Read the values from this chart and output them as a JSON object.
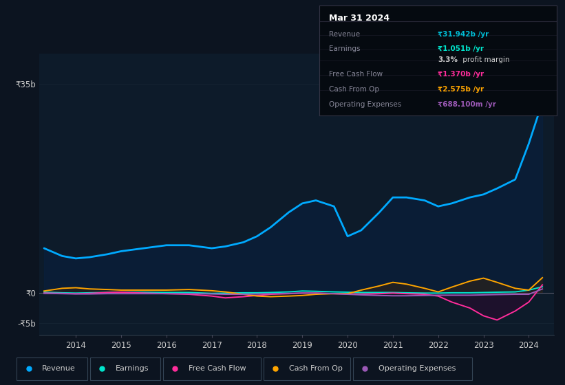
{
  "bg_color": "#0c1420",
  "chart_bg": "#0d1b2a",
  "legend_bg": "#0c1420",
  "box_bg": "#050a10",
  "box_border": "#333344",
  "colors": {
    "revenue": "#00aaff",
    "earnings": "#00e5cc",
    "free_cash_flow": "#ff2d9b",
    "cash_from_op": "#ffa500",
    "op_expenses": "#9b59b6",
    "zero_line": "#555566",
    "grid": "#1a2a3a"
  },
  "legend": [
    {
      "label": "Revenue",
      "color": "#00aaff"
    },
    {
      "label": "Earnings",
      "color": "#00e5cc"
    },
    {
      "label": "Free Cash Flow",
      "color": "#ff2d9b"
    },
    {
      "label": "Cash From Op",
      "color": "#ffa500"
    },
    {
      "label": "Operating Expenses",
      "color": "#9b59b6"
    }
  ],
  "ytick_labels": [
    "₹35b",
    "₹0",
    "-₹5b"
  ],
  "ytick_vals": [
    35,
    0,
    -5
  ],
  "xtick_vals": [
    2014,
    2015,
    2016,
    2017,
    2018,
    2019,
    2020,
    2021,
    2022,
    2023,
    2024
  ],
  "ylim": [
    -7,
    40
  ],
  "xlim_left": 2013.2,
  "xlim_right": 2024.55,
  "box_date": "Mar 31 2024",
  "box_rows": [
    {
      "label": "Revenue",
      "value": "₹31.942b /yr",
      "vcolor": "#00bcd4"
    },
    {
      "label": "Earnings",
      "value": "₹1.051b /yr",
      "vcolor": "#00e5cc"
    },
    {
      "label": "",
      "value": "3.3% profit margin",
      "vcolor": "#cccccc",
      "bold_prefix": "3.3%"
    },
    {
      "label": "Free Cash Flow",
      "value": "₹1.370b /yr",
      "vcolor": "#ff2d9b"
    },
    {
      "label": "Cash From Op",
      "value": "₹2.575b /yr",
      "vcolor": "#ffa500"
    },
    {
      "label": "Operating Expenses",
      "value": "₹688.100m /yr",
      "vcolor": "#9b59b6"
    }
  ]
}
